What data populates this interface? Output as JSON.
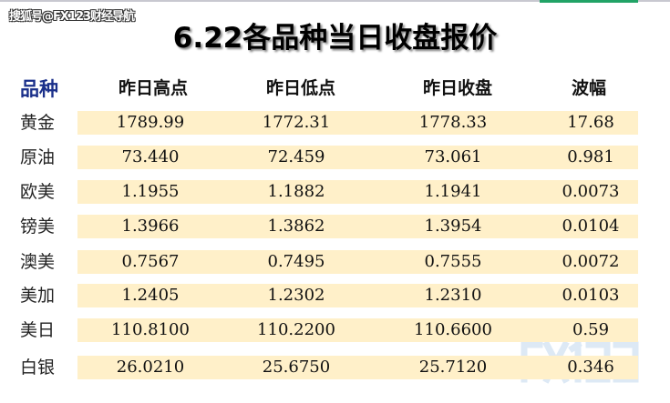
{
  "watermark_top": "搜狐号@FX123财经导航",
  "watermark_logo": "FX123",
  "title": "6.22各品种当日收盘报价",
  "headers": [
    "品种",
    "昨日高点",
    "昨日低点",
    "昨日收盘",
    "波幅"
  ],
  "rows": [
    {
      "name": "黄金",
      "high": "1789.99",
      "low": "1772.31",
      "close": "1778.33",
      "range": "17.68"
    },
    {
      "name": "原油",
      "high": "73.440",
      "low": "72.459",
      "close": "73.061",
      "range": "0.981"
    },
    {
      "name": "欧美",
      "high": "1.1955",
      "low": "1.1882",
      "close": "1.1941",
      "range": "0.0073"
    },
    {
      "name": "镑美",
      "high": "1.3966",
      "low": "1.3862",
      "close": "1.3954",
      "range": "0.0104"
    },
    {
      "name": "澳美",
      "high": "0.7567",
      "low": "0.7495",
      "close": "0.7555",
      "range": "0.0072"
    },
    {
      "name": "美加",
      "high": "1.2405",
      "low": "1.2302",
      "close": "1.2310",
      "range": "0.0103"
    },
    {
      "name": "美日",
      "high": "110.8100",
      "low": "110.2200",
      "close": "110.6600",
      "range": "0.59"
    },
    {
      "name": "白银",
      "high": "26.0210",
      "low": "25.6750",
      "close": "25.7120",
      "range": "0.346"
    }
  ],
  "colors": {
    "band": "#fff0c9",
    "header_first": "#1a2f8a",
    "tab_accent": "#21a366"
  }
}
